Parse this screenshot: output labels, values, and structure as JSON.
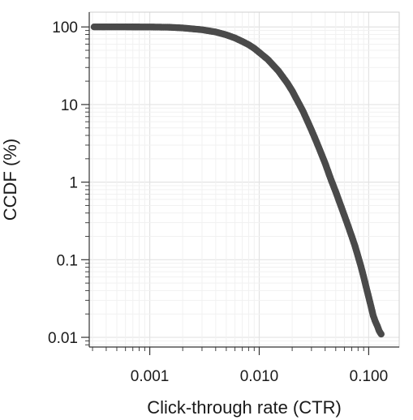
{
  "chart_data": {
    "type": "scatter",
    "title": "",
    "xlabel": "Click-through rate (CTR)",
    "ylabel": "CCDF (%)",
    "x_scale": "log",
    "y_scale": "log",
    "xlim": [
      0.00028,
      0.19
    ],
    "ylim": [
      0.0075,
      155
    ],
    "x_ticks": [
      {
        "value": 0.001,
        "label": "0.001"
      },
      {
        "value": 0.01,
        "label": "0.010"
      },
      {
        "value": 0.1,
        "label": "0.100"
      }
    ],
    "y_ticks": [
      {
        "value": 0.01,
        "label": "0.01"
      },
      {
        "value": 0.1,
        "label": "0.1"
      },
      {
        "value": 1,
        "label": "1"
      },
      {
        "value": 10,
        "label": "10"
      },
      {
        "value": 100,
        "label": "100"
      }
    ],
    "grid": true,
    "legend": "none",
    "marker_color": "#4a4a4a",
    "series": [
      {
        "x": [
          0.00031,
          0.0004,
          0.0006,
          0.001,
          0.0015,
          0.002,
          0.003,
          0.004,
          0.005,
          0.006,
          0.007,
          0.008,
          0.009,
          0.01,
          0.012,
          0.015,
          0.018,
          0.02,
          0.025,
          0.03,
          0.035,
          0.04,
          0.045,
          0.05,
          0.055,
          0.06,
          0.065,
          0.07,
          0.075,
          0.08,
          0.085,
          0.09,
          0.095,
          0.1,
          0.105,
          0.11,
          0.115,
          0.12,
          0.125,
          0.13
        ],
        "y": [
          100,
          100,
          100,
          99.8,
          99,
          97,
          92,
          86,
          79,
          72,
          65,
          59,
          53,
          47,
          38,
          27,
          19,
          15,
          8.3,
          4.7,
          2.8,
          1.75,
          1.1,
          0.75,
          0.52,
          0.37,
          0.27,
          0.2,
          0.15,
          0.11,
          0.082,
          0.06,
          0.044,
          0.033,
          0.025,
          0.019,
          0.016,
          0.014,
          0.012,
          0.011
        ]
      }
    ]
  }
}
